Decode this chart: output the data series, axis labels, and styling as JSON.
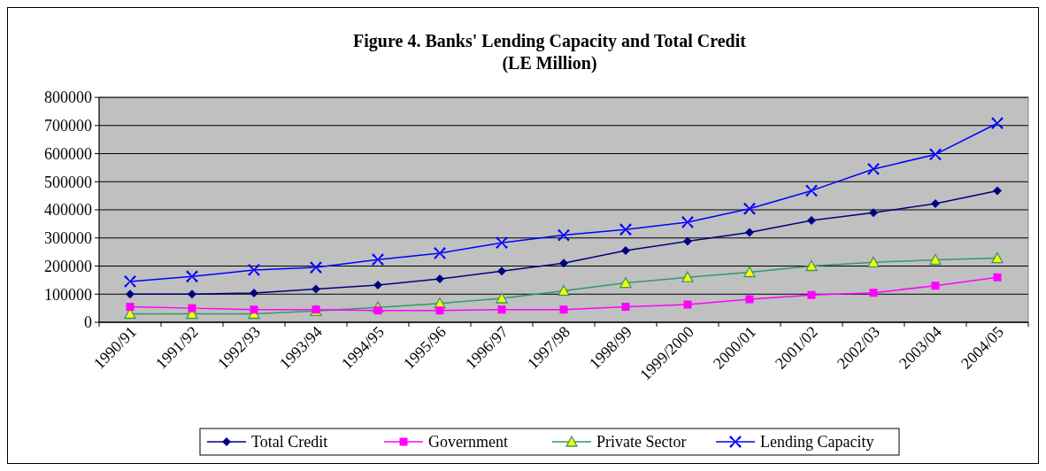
{
  "chart_data": {
    "type": "line",
    "title": "Figure 4. Banks' Lending Capacity and Total Credit",
    "subtitle": "(LE Million)",
    "categories": [
      "1990/91",
      "1991/92",
      "1992/93",
      "1993/94",
      "1994/95",
      "1995/96",
      "1996/97",
      "1997/98",
      "1998/99",
      "1999/2000",
      "2000/01",
      "2001/02",
      "2002/03",
      "2003/04",
      "2004/05"
    ],
    "series": [
      {
        "name": "Total Credit",
        "color": "#000080",
        "marker": "diamond",
        "values": [
          100000,
          100000,
          104000,
          118000,
          132000,
          154000,
          182000,
          210000,
          255000,
          288000,
          320000,
          362000,
          390000,
          422000,
          468000
        ]
      },
      {
        "name": "Government",
        "color": "#ff00ff",
        "marker": "square",
        "values": [
          55000,
          50000,
          45000,
          45000,
          42000,
          42000,
          45000,
          45000,
          55000,
          63000,
          82000,
          97000,
          105000,
          130000,
          160000
        ]
      },
      {
        "name": "Private Sector",
        "color": "#339966",
        "marker": "triangle",
        "values": [
          30000,
          30000,
          30000,
          40000,
          53000,
          67000,
          85000,
          112000,
          140000,
          160000,
          178000,
          200000,
          213000,
          222000,
          228000
        ]
      },
      {
        "name": "Lending Capacity",
        "color": "#0000ff",
        "marker": "cross",
        "values": [
          145000,
          163000,
          186000,
          195000,
          223000,
          246000,
          283000,
          310000,
          330000,
          356000,
          404000,
          468000,
          545000,
          597000,
          708000
        ]
      }
    ],
    "ylim": [
      0,
      800000
    ],
    "yticks": [
      0,
      100000,
      200000,
      300000,
      400000,
      500000,
      600000,
      700000,
      800000
    ],
    "grid": "y",
    "legend": "bottom"
  }
}
